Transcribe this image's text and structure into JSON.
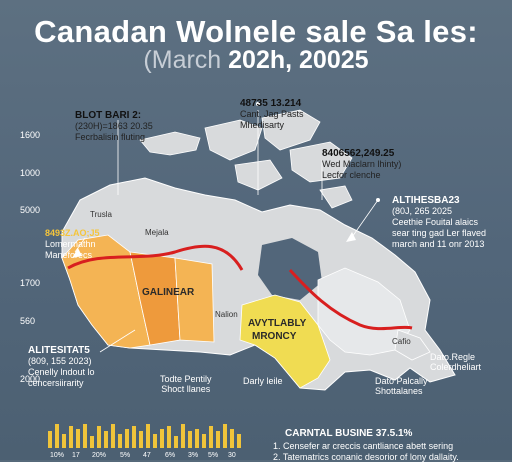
{
  "header": {
    "title": "Canadan Wolnele sale  Sa les:",
    "subtitle_muted": "(March ",
    "subtitle_strong": "202h, 20025"
  },
  "y_axis": [
    "1600",
    "1000",
    "5000",
    "1700",
    "560",
    "2000"
  ],
  "annotations": {
    "top_left": {
      "title": "BLOT BARI 2:",
      "line1": "(230H)=1863 20.35",
      "line2": "Fecrbalisin fluting"
    },
    "top_center": {
      "title": "48735 13.214",
      "line1": "Cant, Jag Pasts",
      "line2": "Mhedisarty"
    },
    "right_mid": {
      "title": "8406562,249.25",
      "line1": "Wed Maclarn lhinty)",
      "line2": "Lecfor clenche"
    },
    "right_big": {
      "title": "ALTIHESBA23",
      "line1": "(80J, 265 2025",
      "line2": "Ceethie Fouital alaics",
      "line3": "sear ting gad Ler flaved",
      "line4": "march and 11 onr 2013"
    },
    "left_mid": {
      "value": "8493Z.AO;J5",
      "line1": "Lomermathn",
      "line2": "Maneforecs"
    },
    "left_bottom": {
      "title": "ALITESITAT5",
      "line1": "(809, 155 2023)",
      "line2": "Cenelly lndout lo",
      "line3": "cencersiirarity"
    }
  },
  "regions": {
    "trusla": "Trusla",
    "majala": "Mejala",
    "galinear": "GALINEAR",
    "nalion": "Nalion",
    "ontario": "AVYTLABLY",
    "ontario2": "MRONCY",
    "todte": "Todte Pentily",
    "todte2": "Shoct llanes",
    "darly": "Darly leile",
    "cafio": "Cafio",
    "datoregle": "Dato.Regle",
    "datoregle2": "Colerdheliart",
    "datopalcally": "Dato Palcally",
    "datopalcally2": "Shottalanes"
  },
  "footer": {
    "title": "CARNTAL BUSINE 37.5.1%",
    "item1": "1.  Censefer ar creccis cantliance abett sering",
    "item2": "2.  Tatematrics conanic desorior of lony dallaity."
  },
  "mini_chart": {
    "ticks": [
      "10%",
      "17",
      "20%",
      "5%",
      "47",
      "6%",
      "3%",
      "5%",
      "30"
    ],
    "values": [
      0.7,
      1.0,
      0.6,
      0.9,
      0.8,
      1.0,
      0.5,
      0.9,
      0.7,
      1.0,
      0.6,
      0.8,
      0.9,
      0.7,
      1.0,
      0.6,
      0.8,
      0.9,
      0.5,
      1.0,
      0.7,
      0.8,
      0.6,
      0.9,
      0.7,
      1.0,
      0.8,
      0.6
    ]
  },
  "colors": {
    "bc": "#f4b454",
    "alberta": "#ee9a3c",
    "ontario": "#f0dc52",
    "land": "#d8dadc",
    "trend_line": "#d81f1f",
    "bar": "#f0c43a"
  }
}
